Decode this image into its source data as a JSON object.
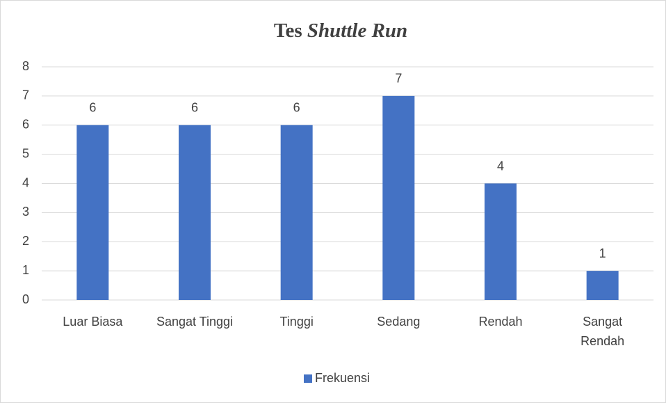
{
  "chart_data": {
    "type": "bar",
    "title": "Tes Shuttle Run",
    "categories": [
      "Luar Biasa",
      "Sangat Tinggi",
      "Tinggi",
      "Sedang",
      "Rendah",
      "Sangat\nRendah"
    ],
    "series": [
      {
        "name": "Frekuensi",
        "color": "#4472c4",
        "values": [
          6,
          6,
          6,
          7,
          4,
          1
        ]
      }
    ],
    "ylim": [
      0,
      8
    ],
    "yticks": [
      0,
      1,
      2,
      3,
      4,
      5,
      6,
      7,
      8
    ],
    "grid": true,
    "legend": "bottom"
  }
}
